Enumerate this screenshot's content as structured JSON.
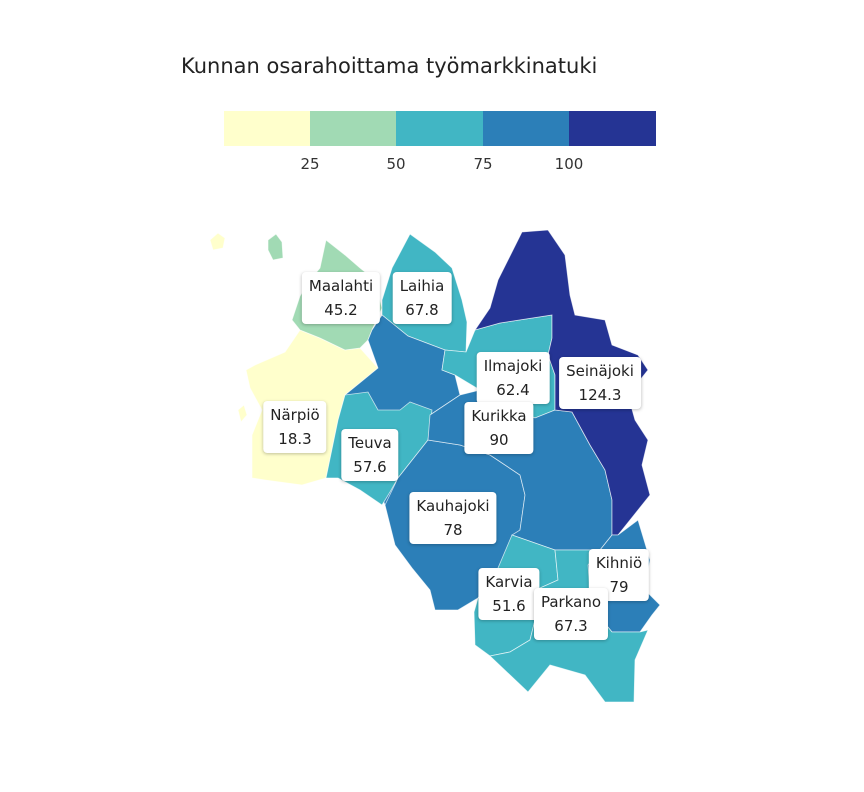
{
  "title": "Kunnan osarahoittama työmarkkinatuki",
  "legend": {
    "colors": [
      "#ffffcc",
      "#a1dab4",
      "#41b6c4",
      "#2c7fb8",
      "#253494"
    ],
    "ticks": [
      "25",
      "50",
      "75",
      "100"
    ],
    "breaks": [
      25,
      50,
      75,
      100
    ]
  },
  "municipalities": [
    {
      "name": "Maalahti",
      "value": "45.2"
    },
    {
      "name": "Laihia",
      "value": "67.8"
    },
    {
      "name": "Ilmajoki",
      "value": "62.4"
    },
    {
      "name": "Seinäjoki",
      "value": "124.3"
    },
    {
      "name": "Närpiö",
      "value": "18.3"
    },
    {
      "name": "Kurikka",
      "value": "90"
    },
    {
      "name": "Teuva",
      "value": "57.6"
    },
    {
      "name": "Kauhajoki",
      "value": "78"
    },
    {
      "name": "Kihniö",
      "value": "79"
    },
    {
      "name": "Karvia",
      "value": "51.6"
    },
    {
      "name": "Parkano",
      "value": "67.3"
    }
  ]
}
